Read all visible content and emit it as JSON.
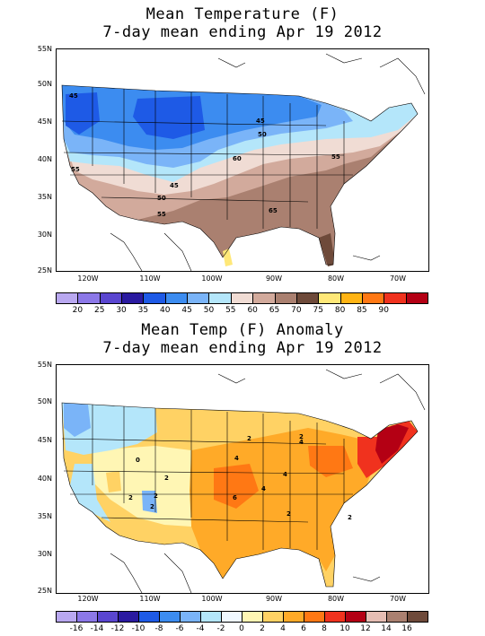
{
  "top": {
    "title_line1": "Mean Temperature (F)",
    "title_line2": "7-day mean ending Apr 19 2012",
    "lat_ticks": [
      "55N",
      "50N",
      "45N",
      "40N",
      "35N",
      "30N",
      "25N"
    ],
    "lon_ticks": [
      "120W",
      "110W",
      "100W",
      "90W",
      "80W",
      "70W"
    ],
    "contour_labels": [
      "45",
      "45",
      "50",
      "60",
      "55",
      "55",
      "45",
      "50",
      "55",
      "65"
    ],
    "colorbar_labels": [
      "20",
      "25",
      "30",
      "35",
      "40",
      "45",
      "50",
      "55",
      "60",
      "65",
      "70",
      "75",
      "80",
      "85",
      "90"
    ],
    "colorbar_colors": [
      "#b9a8f0",
      "#8c78e8",
      "#5a46d0",
      "#2a1aa0",
      "#1e5ae6",
      "#3c8cf0",
      "#7ab4f8",
      "#b4e6fa",
      "#f0dcd4",
      "#d2aa9c",
      "#aa8070",
      "#6e4a3a",
      "#ffe878",
      "#ffb414",
      "#ff7814",
      "#f0321e",
      "#b40014"
    ]
  },
  "bottom": {
    "title_line1": "Mean Temp (F) Anomaly",
    "title_line2": "7-day mean ending Apr 19 2012",
    "lat_ticks": [
      "55N",
      "50N",
      "45N",
      "40N",
      "35N",
      "30N",
      "25N"
    ],
    "lon_ticks": [
      "120W",
      "110W",
      "100W",
      "90W",
      "80W",
      "70W"
    ],
    "contour_labels": [
      "2",
      "2",
      "4",
      "4",
      "6",
      "4",
      "2",
      "2",
      "2",
      "2",
      "2",
      "2",
      "0",
      "4"
    ],
    "colorbar_labels": [
      "-16",
      "-14",
      "-12",
      "-10",
      "-8",
      "-6",
      "-4",
      "-2",
      "0",
      "2",
      "4",
      "6",
      "8",
      "10",
      "12",
      "14",
      "16"
    ],
    "colorbar_colors": [
      "#b9a8f0",
      "#8c78e8",
      "#5a46d0",
      "#2a1aa0",
      "#1e5ae6",
      "#3c8cf0",
      "#7ab4f8",
      "#b4e6fa",
      "#f0f8ff",
      "#fff6b4",
      "#ffd264",
      "#ffaa28",
      "#ff7814",
      "#f0321e",
      "#b40014",
      "#e6beb4",
      "#aa8070",
      "#6e4a3a"
    ]
  }
}
